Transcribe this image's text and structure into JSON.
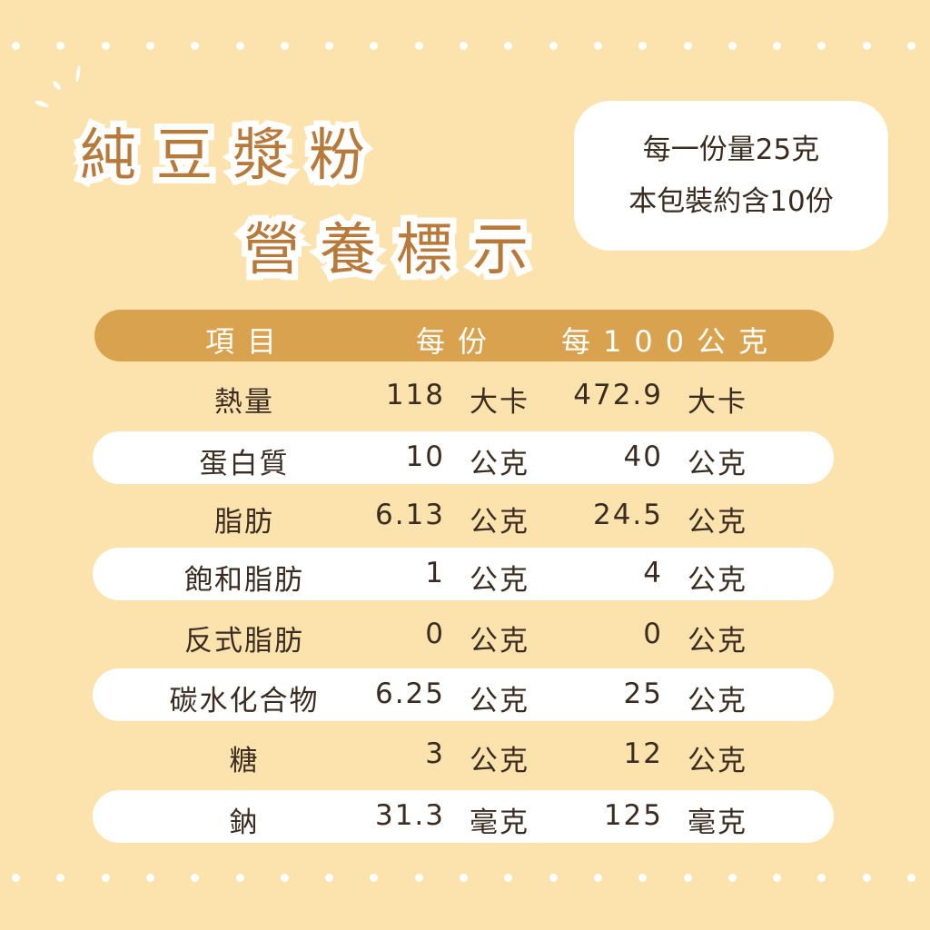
{
  "title": {
    "line1": "純豆漿粉",
    "line2": "營養標示"
  },
  "info": {
    "serving_size": "每一份量25克",
    "servings_per_package": "本包裝約含10份"
  },
  "colors": {
    "background": "#FCE3AE",
    "accent": "#D9A24F",
    "title_text": "#B77A3B"
  },
  "table": {
    "headers": [
      "項目",
      "每份",
      "每100公克"
    ],
    "rows": [
      {
        "item": "熱量",
        "per_serving": "118",
        "per_serving_unit": "大卡",
        "per_100g": "472.9",
        "per_100g_unit": "大卡"
      },
      {
        "item": "蛋白質",
        "per_serving": "10",
        "per_serving_unit": "公克",
        "per_100g": "40",
        "per_100g_unit": "公克"
      },
      {
        "item": "脂肪",
        "per_serving": "6.13",
        "per_serving_unit": "公克",
        "per_100g": "24.5",
        "per_100g_unit": "公克"
      },
      {
        "item": "飽和脂肪",
        "per_serving": "1",
        "per_serving_unit": "公克",
        "per_100g": "4",
        "per_100g_unit": "公克"
      },
      {
        "item": "反式脂肪",
        "per_serving": "0",
        "per_serving_unit": "公克",
        "per_100g": "0",
        "per_100g_unit": "公克"
      },
      {
        "item": "碳水化合物",
        "per_serving": "6.25",
        "per_serving_unit": "公克",
        "per_100g": "25",
        "per_100g_unit": "公克"
      },
      {
        "item": "糖",
        "per_serving": "3",
        "per_serving_unit": "公克",
        "per_100g": "12",
        "per_100g_unit": "公克"
      },
      {
        "item": "鈉",
        "per_serving": "31.3",
        "per_serving_unit": "毫克",
        "per_100g": "125",
        "per_100g_unit": "毫克"
      }
    ]
  }
}
